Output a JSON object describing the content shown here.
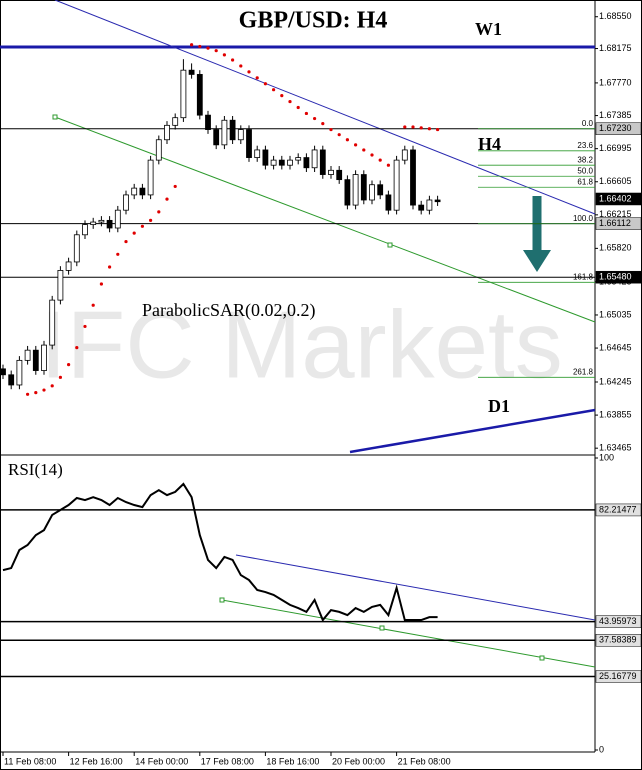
{
  "chart_data": [
    {
      "type": "candlestick",
      "title": "GBP/USD: H4",
      "annotations": [
        "W1",
        "H4",
        "D1",
        "ParabolicSAR(0.02,0.2)"
      ],
      "watermark": "IFC Markets",
      "categories": [
        "11 Feb 08:00",
        null,
        null,
        null,
        null,
        null,
        null,
        null,
        "12 Feb 16:00",
        null,
        null,
        null,
        null,
        null,
        null,
        null,
        "14 Feb 00:00",
        null,
        null,
        null,
        null,
        null,
        null,
        null,
        "17 Feb 08:00",
        null,
        null,
        null,
        null,
        null,
        null,
        null,
        "18 Feb 16:00",
        null,
        null,
        null,
        null,
        null,
        null,
        null,
        "20 Feb 00:00",
        null,
        null,
        null,
        null,
        null,
        null,
        null,
        "21 Feb 08:00",
        null,
        null,
        null,
        null,
        null
      ],
      "open": [
        1.644,
        1.6433,
        1.6421,
        1.645,
        1.6462,
        1.6438,
        1.6468,
        1.6521,
        1.6556,
        1.6566,
        1.6598,
        1.661,
        1.6613,
        1.6615,
        1.6606,
        1.6627,
        1.6645,
        1.6653,
        1.6645,
        1.6686,
        1.671,
        1.6727,
        1.6736,
        1.6792,
        1.6787,
        1.6739,
        1.6722,
        1.6704,
        1.6733,
        1.671,
        1.6722,
        1.6689,
        1.6698,
        1.668,
        1.6686,
        1.668,
        1.6686,
        1.6689,
        1.6677,
        1.6698,
        1.6669,
        1.6674,
        1.6663,
        1.6633,
        1.6669,
        1.6639,
        1.6657,
        1.6645,
        1.6627,
        1.6686,
        1.6698,
        1.6633,
        1.6627,
        1.6639
      ],
      "high": [
        1.6445,
        1.6438,
        1.6455,
        1.6467,
        1.6467,
        1.6473,
        1.6526,
        1.6561,
        1.6571,
        1.6603,
        1.6615,
        1.6618,
        1.662,
        1.662,
        1.6632,
        1.665,
        1.6658,
        1.6658,
        1.6691,
        1.6715,
        1.6732,
        1.6741,
        1.6805,
        1.68,
        1.6792,
        1.6744,
        1.6727,
        1.6738,
        1.6738,
        1.6727,
        1.6727,
        1.6703,
        1.6703,
        1.6691,
        1.6691,
        1.6691,
        1.6694,
        1.6694,
        1.6703,
        1.6703,
        1.6679,
        1.6679,
        1.6668,
        1.6674,
        1.6674,
        1.6662,
        1.6662,
        1.665,
        1.6691,
        1.6703,
        1.6703,
        1.6638,
        1.6644,
        1.6644
      ],
      "low": [
        1.6428,
        1.6416,
        1.6416,
        1.6445,
        1.6433,
        1.6433,
        1.6463,
        1.6516,
        1.6551,
        1.6561,
        1.6593,
        1.6605,
        1.6608,
        1.6601,
        1.6601,
        1.6622,
        1.664,
        1.664,
        1.664,
        1.6681,
        1.6705,
        1.6722,
        1.6731,
        1.6782,
        1.6734,
        1.6717,
        1.6699,
        1.6699,
        1.6705,
        1.6705,
        1.6684,
        1.6684,
        1.6675,
        1.6675,
        1.6675,
        1.6675,
        1.6681,
        1.6672,
        1.6672,
        1.6664,
        1.6664,
        1.6658,
        1.6628,
        1.6628,
        1.6634,
        1.6634,
        1.664,
        1.6622,
        1.6622,
        1.6681,
        1.6628,
        1.6622,
        1.6622,
        1.6632
      ],
      "close": [
        1.6433,
        1.6421,
        1.645,
        1.6462,
        1.6438,
        1.6468,
        1.6521,
        1.6556,
        1.6566,
        1.6598,
        1.661,
        1.6613,
        1.6615,
        1.6606,
        1.6627,
        1.6645,
        1.6653,
        1.6645,
        1.6686,
        1.671,
        1.6727,
        1.6736,
        1.6792,
        1.6787,
        1.6739,
        1.6722,
        1.6704,
        1.6733,
        1.671,
        1.6722,
        1.6689,
        1.6698,
        1.668,
        1.6686,
        1.668,
        1.6686,
        1.6689,
        1.6677,
        1.6698,
        1.6669,
        1.6674,
        1.6663,
        1.6633,
        1.6669,
        1.6639,
        1.6657,
        1.6645,
        1.6627,
        1.6686,
        1.6698,
        1.6633,
        1.6627,
        1.6639,
        1.6637
      ],
      "sar": [
        null,
        null,
        null,
        1.641,
        1.6412,
        1.6415,
        1.642,
        1.643,
        1.6445,
        1.6465,
        1.649,
        1.6515,
        1.654,
        1.656,
        1.6575,
        1.659,
        1.66,
        1.6608,
        1.6615,
        1.6625,
        1.664,
        1.6655,
        null,
        1.6822,
        1.682,
        1.6818,
        1.6815,
        1.681,
        1.6804,
        1.6797,
        1.679,
        1.6783,
        1.6776,
        1.6769,
        1.6762,
        1.6755,
        1.6748,
        1.6741,
        1.6735,
        1.6729,
        1.6722,
        1.6716,
        1.671,
        1.6704,
        1.6698,
        1.6692,
        1.6686,
        1.668,
        null,
        1.6725,
        1.6725,
        1.6724,
        1.6723,
        1.6722
      ],
      "sar_color": "#e00000",
      "ylim": [
        1.6342,
        1.687
      ],
      "yticks": [
        {
          "value": 1.6855,
          "label": "1.68550"
        },
        1.68175,
        {
          "value": 1.6777,
          "label": "1.67770"
        },
        1.67385,
        1.66995,
        1.66605,
        1.66215,
        {
          "value": 1.6582,
          "label": "1.65820"
        },
        1.65425,
        1.65035,
        1.64645,
        1.64245,
        1.63855,
        1.63465
      ],
      "levels": [
        {
          "value": 1.6723,
          "label": "1.67230",
          "box_color": "#c8c8c8",
          "line": true
        },
        {
          "value": 1.66402,
          "label": "1.66402",
          "box_color": "#000000",
          "line": false
        },
        {
          "value": 1.66112,
          "label": "1.66112",
          "box_color": "#c8c8c8",
          "line": true
        },
        {
          "value": 1.6548,
          "label": "1.65480",
          "box_color": "#000000",
          "line": true
        }
      ],
      "fib_color": "#2e9a2e",
      "fib_levels": [
        {
          "value": 1.6723,
          "label": "0.0"
        },
        {
          "value": 1.6697,
          "label": "23.6"
        },
        {
          "value": 1.668,
          "label": "38.2"
        },
        {
          "value": 1.6667,
          "label": "50.0"
        },
        {
          "value": 1.6654,
          "label": "61.8"
        },
        {
          "value": 1.6611,
          "label": "100.0"
        },
        {
          "value": 1.6542,
          "label": "161.8"
        },
        {
          "value": 1.643,
          "label": "261.8"
        }
      ]
    },
    {
      "type": "line",
      "title": "RSI(14)",
      "color": "#000000",
      "values": [
        61.6,
        62.3,
        68.5,
        70.2,
        73.6,
        75.3,
        80.5,
        82.2,
        83.9,
        86.3,
        85.6,
        86.6,
        85.6,
        83.9,
        86.3,
        84.9,
        83.9,
        83.2,
        87.3,
        89.0,
        87.3,
        88.4,
        91.1,
        86.6,
        73.6,
        65.1,
        62.3,
        66.1,
        65.1,
        59.9,
        58.2,
        54.8,
        54.1,
        53.1,
        51.4,
        49.7,
        48.6,
        47.3,
        51.4,
        44.5,
        47.9,
        47.3,
        46.2,
        48.6,
        47.3,
        49.0,
        49.7,
        46.2,
        55.5,
        44.5,
        44.5,
        44.5,
        45.5,
        45.5
      ],
      "ylim": [
        0,
        100
      ],
      "yticks": [
        100,
        0
      ],
      "levels": [
        {
          "value": 82.21477,
          "label": "82.21477"
        },
        {
          "value": 43.95973,
          "label": "43.95973"
        },
        {
          "value": 37.58389,
          "label": "37.58389"
        },
        {
          "value": 25.16779,
          "label": "25.16779"
        }
      ]
    }
  ]
}
